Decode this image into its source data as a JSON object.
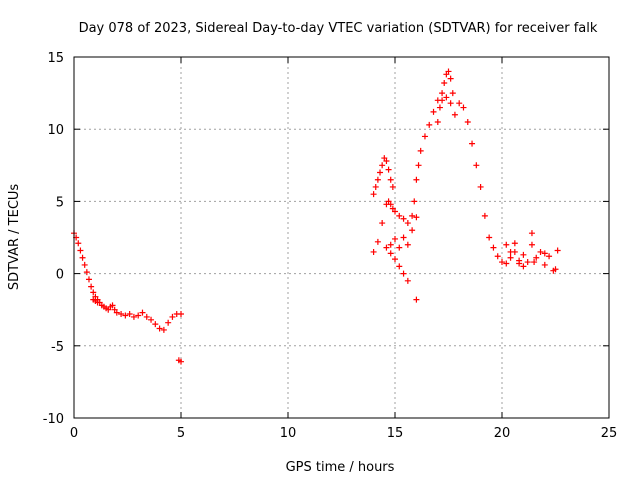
{
  "chart_data": {
    "type": "scatter",
    "title": "Day 078 of 2023, Sidereal Day-to-day VTEC variation (SDTVAR) for receiver falk",
    "xlabel": "GPS time / hours",
    "ylabel": "SDTVAR / TECUs",
    "xlim": [
      0,
      25
    ],
    "ylim": [
      -10,
      15
    ],
    "xticks": [
      0,
      5,
      10,
      15,
      20,
      25
    ],
    "xtick_labels": [
      "0",
      "5",
      "10",
      "15",
      "20",
      "25"
    ],
    "yticks": [
      -10,
      -5,
      0,
      5,
      10,
      15
    ],
    "ytick_labels": [
      "-10",
      "-5",
      "0",
      "5",
      "10",
      "15"
    ],
    "grid": true,
    "marker": "+",
    "color": "#ff0000",
    "series": [
      {
        "name": "SDTVAR",
        "x": [
          0.0,
          0.1,
          0.2,
          0.3,
          0.4,
          0.5,
          0.6,
          0.7,
          0.8,
          0.9,
          1.0,
          1.1,
          1.2,
          1.3,
          1.4,
          1.5,
          1.6,
          1.7,
          1.8,
          1.9,
          2.0,
          2.2,
          2.4,
          2.6,
          2.8,
          3.0,
          3.2,
          3.4,
          3.6,
          3.8,
          4.0,
          4.2,
          4.4,
          4.6,
          4.8,
          5.0,
          0.9,
          1.0,
          1.1,
          4.9,
          5.0,
          14.0,
          14.1,
          14.2,
          14.3,
          14.4,
          14.5,
          14.6,
          14.7,
          14.8,
          14.9,
          14.0,
          14.2,
          14.4,
          14.6,
          14.7,
          14.8,
          14.9,
          15.0,
          15.2,
          15.4,
          15.6,
          15.8,
          14.6,
          14.8,
          15.0,
          15.2,
          15.4,
          15.6,
          14.8,
          15.0,
          15.2,
          15.4,
          15.6,
          15.8,
          16.0,
          16.0,
          15.9,
          16.0,
          16.1,
          16.2,
          16.4,
          16.6,
          16.8,
          17.0,
          17.2,
          17.4,
          17.6,
          17.8,
          18.0,
          18.2,
          18.4,
          18.6,
          18.8,
          19.0,
          19.2,
          19.4,
          19.6,
          19.8,
          20.0,
          20.2,
          20.4,
          20.6,
          20.8,
          21.0,
          21.2,
          21.4,
          21.6,
          21.8,
          22.0,
          22.2,
          22.4,
          22.6,
          17.0,
          17.1,
          17.2,
          17.3,
          17.4,
          17.5,
          17.6,
          17.7,
          20.2,
          20.4,
          20.6,
          20.8,
          21.0,
          21.5,
          22.0,
          22.5,
          21.4
        ],
        "y": [
          2.8,
          2.5,
          2.1,
          1.6,
          1.1,
          0.6,
          0.1,
          -0.4,
          -0.9,
          -1.3,
          -1.6,
          -1.8,
          -2.0,
          -2.2,
          -2.3,
          -2.4,
          -2.5,
          -2.3,
          -2.2,
          -2.5,
          -2.7,
          -2.8,
          -2.9,
          -2.8,
          -3.0,
          -2.9,
          -2.7,
          -3.0,
          -3.2,
          -3.5,
          -3.8,
          -3.9,
          -3.4,
          -3.0,
          -2.8,
          -2.8,
          -1.8,
          -1.9,
          -2.0,
          -6.0,
          -6.1,
          5.5,
          6.0,
          6.5,
          7.0,
          7.5,
          8.0,
          7.8,
          7.2,
          6.5,
          6.0,
          1.5,
          2.2,
          3.5,
          4.8,
          5.0,
          4.8,
          4.5,
          4.3,
          4.0,
          3.8,
          3.5,
          3.0,
          1.8,
          1.4,
          1.0,
          0.5,
          0.0,
          -0.5,
          2.0,
          2.4,
          1.8,
          2.5,
          2.0,
          4.0,
          3.9,
          -1.8,
          5.0,
          6.5,
          7.5,
          8.5,
          9.5,
          10.3,
          11.2,
          12.0,
          12.0,
          12.2,
          11.8,
          11.0,
          11.8,
          11.5,
          10.5,
          9.0,
          7.5,
          6.0,
          4.0,
          2.5,
          1.8,
          1.2,
          0.8,
          0.7,
          1.1,
          1.5,
          0.9,
          1.3,
          0.8,
          2.0,
          1.1,
          1.5,
          0.6,
          1.2,
          0.2,
          1.6,
          10.5,
          11.5,
          12.5,
          13.2,
          13.8,
          14.0,
          13.5,
          12.5,
          2.0,
          1.5,
          2.1,
          0.7,
          0.5,
          0.8,
          1.4,
          0.3,
          2.8
        ]
      }
    ]
  }
}
